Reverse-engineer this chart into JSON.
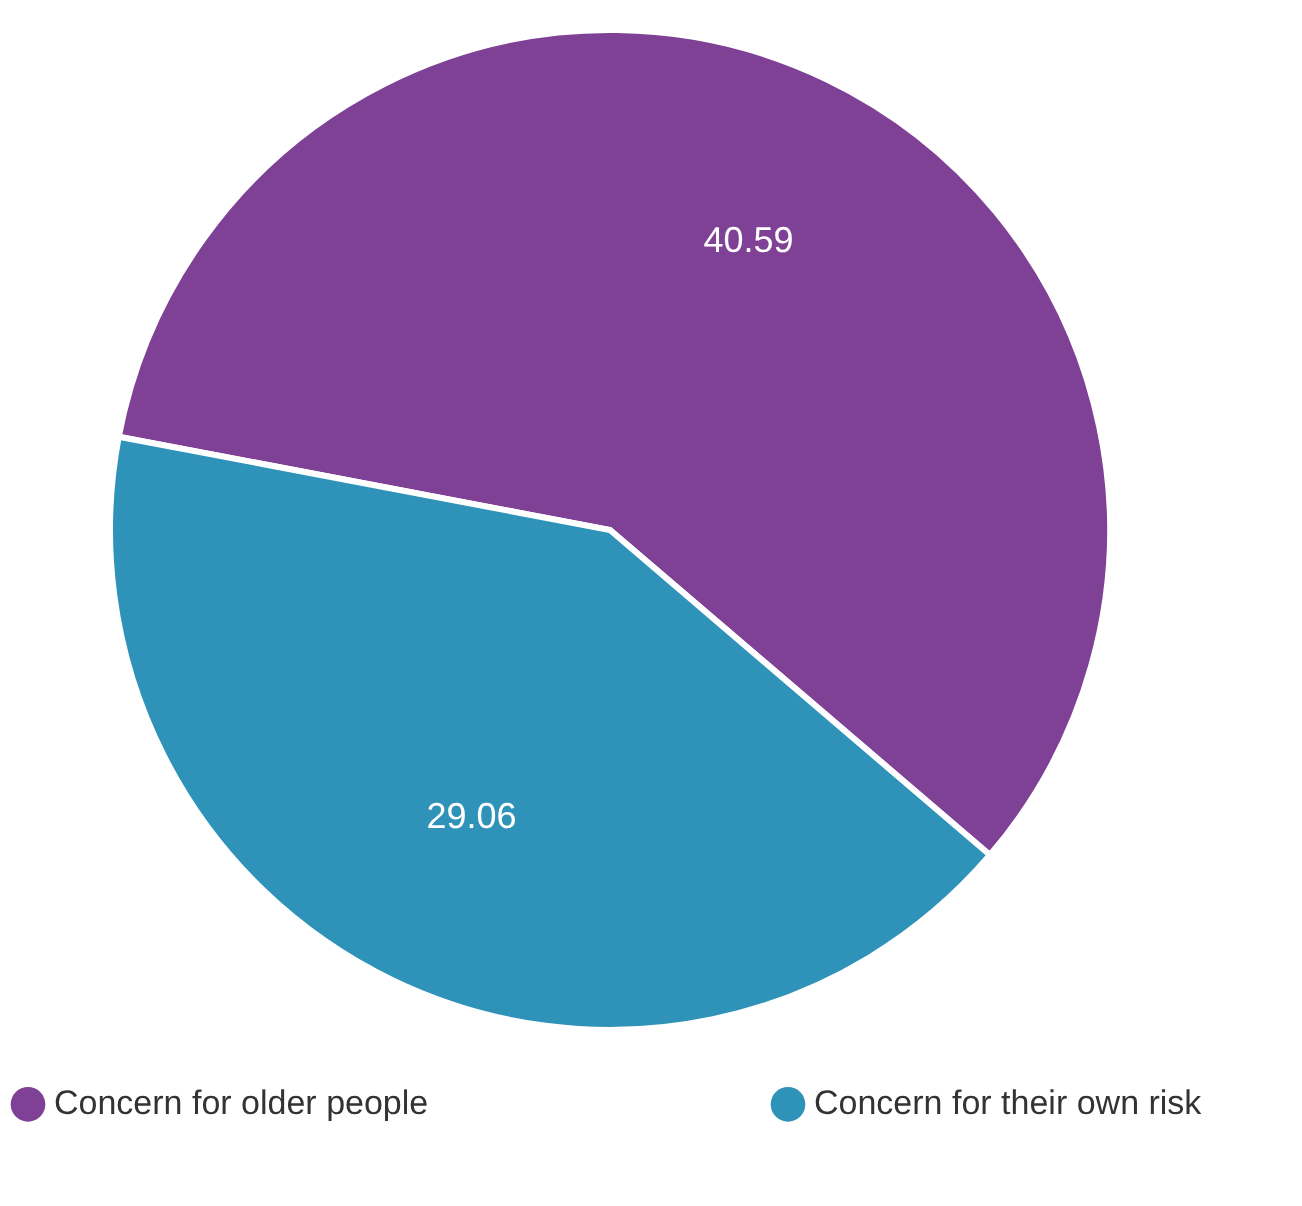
{
  "chart_data": {
    "type": "pie",
    "categories": [
      "Concern for older people",
      "Concern for their own risk"
    ],
    "values": [
      40.59,
      29.06
    ],
    "colors": [
      "#7f4196",
      "#2f93b9"
    ],
    "data_labels": true,
    "legend": "bottom"
  }
}
